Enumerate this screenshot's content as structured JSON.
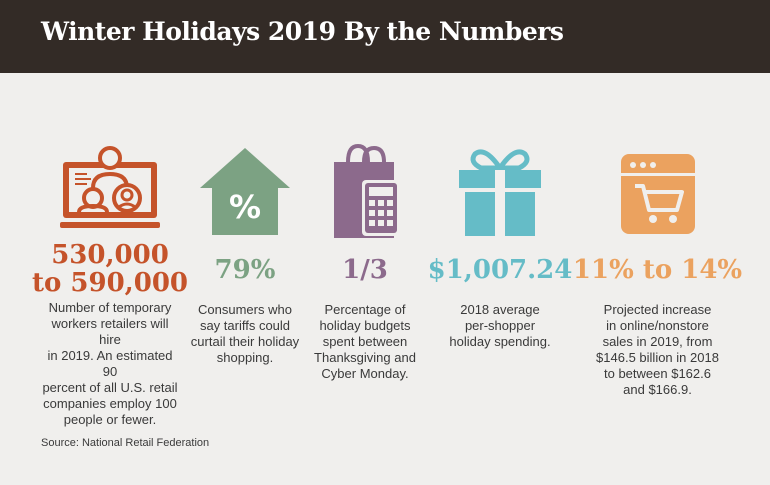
{
  "header": {
    "title": "Winter Holidays 2019 By the Numbers"
  },
  "colors": {
    "header_bg": "#332b26",
    "background": "#f0efed",
    "orange_red": "#c5532a",
    "green": "#7ca283",
    "purple": "#8c6a8c",
    "teal": "#65bcc7",
    "orange": "#eba25f"
  },
  "stats": [
    {
      "icon": "computer-users-icon",
      "value_line1": "530,000",
      "value_line2": "to 590,000",
      "desc_lines": [
        "Number of temporary",
        "workers retailers will hire",
        "in 2019. An estimated 90",
        "percent of all U.S. retail",
        "companies employ 100",
        "people or fewer."
      ]
    },
    {
      "icon": "house-percent-icon",
      "value_line1": "79%",
      "desc_lines": [
        "Consumers who",
        "say tariffs could",
        "curtail their holiday",
        "shopping."
      ]
    },
    {
      "icon": "shopping-bag-calculator-icon",
      "value_line1": "1/3",
      "desc_lines": [
        "Percentage of",
        "holiday budgets",
        "spent between",
        "Thanksgiving and",
        "Cyber Monday."
      ]
    },
    {
      "icon": "gift-box-icon",
      "value_line1": "$1,007.24",
      "desc_lines": [
        "2018 average",
        "per-shopper",
        "holiday spending."
      ]
    },
    {
      "icon": "browser-cart-icon",
      "value_line1": "11% to 14%",
      "desc_lines": [
        "Projected increase",
        "in online/nonstore",
        "sales in 2019, from",
        "$146.5 billion in 2018",
        "to between $162.6",
        "and $166.9."
      ]
    }
  ],
  "source": "Source: National Retail Federation"
}
